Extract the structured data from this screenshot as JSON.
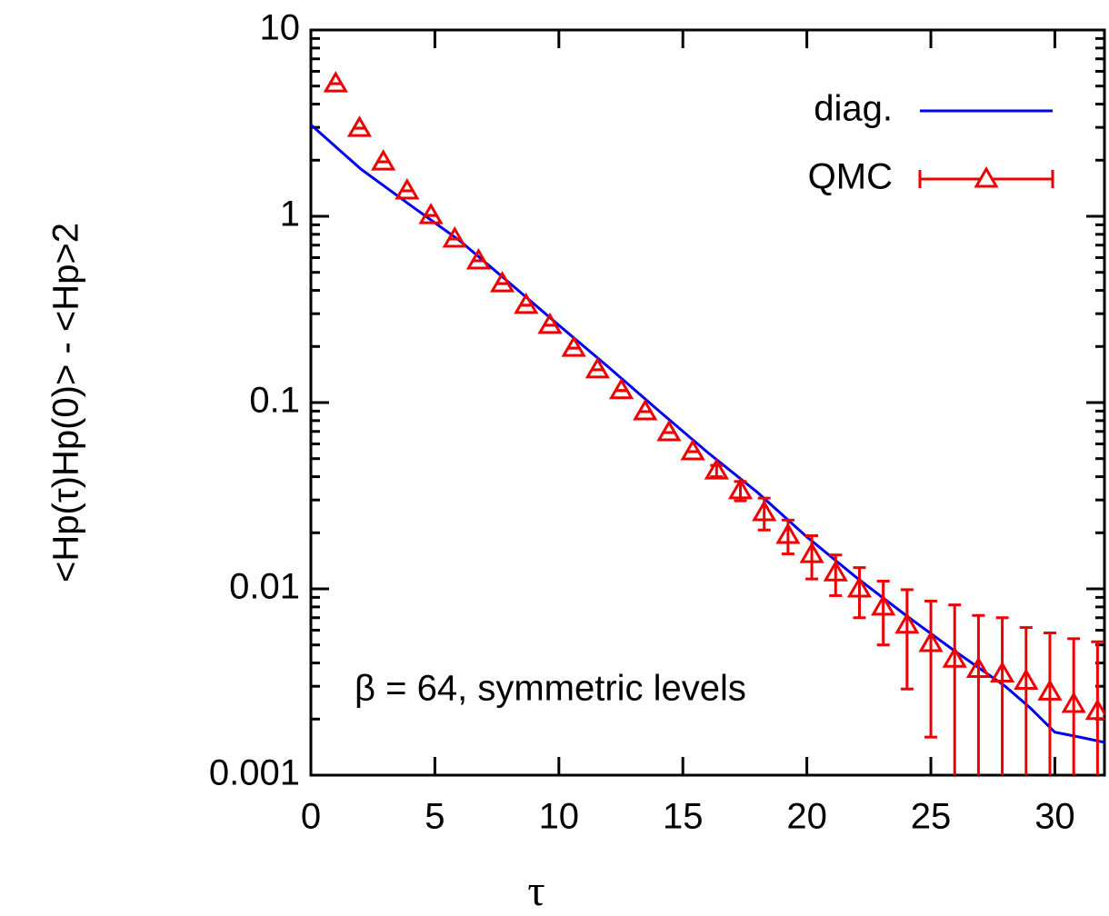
{
  "chart_data": {
    "type": "line-errorbar",
    "xlabel": "τ",
    "ylabel": "<Hp(τ)Hp(0)> - <Hp>2",
    "annotation": "β = 64, symmetric levels",
    "xlim": [
      0,
      32
    ],
    "ylim": [
      0.001,
      10
    ],
    "log_y": true,
    "xticks": [
      0,
      5,
      10,
      15,
      20,
      25,
      30
    ],
    "yticks": [
      0.001,
      0.01,
      0.1,
      1,
      10
    ],
    "legend": "upper right",
    "series": [
      {
        "name": "diag.",
        "color": "#0000ee",
        "kind": "line",
        "x": [
          0,
          2,
          4,
          6,
          8,
          10,
          12,
          14,
          16,
          18,
          20,
          22,
          24,
          26,
          28,
          29,
          30,
          31,
          32
        ],
        "values": [
          3.1,
          1.8,
          1.15,
          0.74,
          0.44,
          0.26,
          0.155,
          0.091,
          0.054,
          0.033,
          0.019,
          0.0115,
          0.0072,
          0.0046,
          0.003,
          0.0023,
          0.0017,
          0.0016,
          0.0015
        ]
      },
      {
        "name": "QMC",
        "color": "#ee0000",
        "kind": "errorbar",
        "x": [
          1.0,
          1.96,
          2.92,
          3.88,
          4.84,
          5.8,
          6.76,
          7.72,
          8.68,
          9.64,
          10.6,
          11.56,
          12.52,
          13.48,
          14.44,
          15.4,
          16.36,
          17.32,
          18.28,
          19.24,
          20.2,
          21.16,
          22.12,
          23.08,
          24.04,
          25.0,
          25.96,
          26.92,
          27.88,
          28.84,
          29.8,
          30.76,
          31.72
        ],
        "values": [
          5.15,
          2.97,
          1.96,
          1.37,
          1.01,
          0.755,
          0.577,
          0.435,
          0.333,
          0.26,
          0.196,
          0.15,
          0.116,
          0.0894,
          0.069,
          0.0545,
          0.043,
          0.0337,
          0.0257,
          0.0194,
          0.0153,
          0.0122,
          0.01,
          0.008,
          0.0064,
          0.0051,
          0.0042,
          0.0037,
          0.0035,
          0.0032,
          0.0028,
          0.0024,
          0.0022
        ],
        "errors": [
          0,
          0,
          0,
          0,
          0,
          0,
          0,
          0,
          0,
          0,
          0,
          0,
          0,
          0,
          0,
          0,
          0.003,
          0.004,
          0.005,
          0.004,
          0.004,
          0.003,
          0.003,
          0.003,
          0.0035,
          0.0035,
          0.004,
          0.0035,
          0.0035,
          0.003,
          0.003,
          0.003,
          0.003
        ]
      }
    ]
  }
}
